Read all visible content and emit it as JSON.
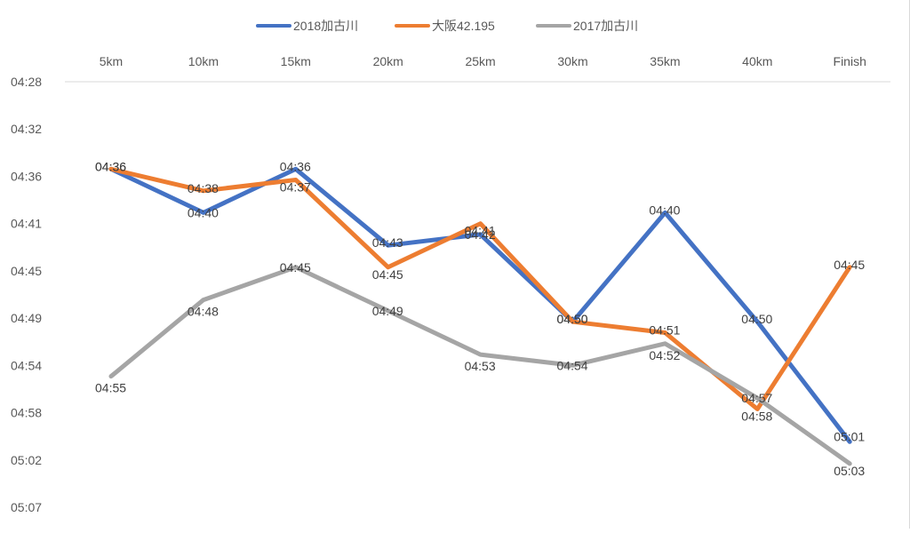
{
  "chart_data": {
    "type": "line",
    "categories": [
      "5km",
      "10km",
      "15km",
      "20km",
      "25km",
      "30km",
      "35km",
      "40km",
      "Finish"
    ],
    "y_tick_labels": [
      "04:28",
      "04:32",
      "04:36",
      "04:41",
      "04:45",
      "04:49",
      "04:54",
      "04:58",
      "05:02",
      "05:07"
    ],
    "y_axis_range_seconds": [
      268,
      307
    ],
    "y_axis_reversed": true,
    "x_axis_position": "top",
    "grid": false,
    "legend_position": "top",
    "series": [
      {
        "name": "2018加古川",
        "color": "#4472c4",
        "labels": [
          "04:36",
          "04:40",
          "04:36",
          "04:43",
          "04:42",
          "04:50",
          "04:40",
          "04:50",
          "05:01"
        ],
        "values_seconds": [
          276,
          280,
          276,
          283,
          282,
          290,
          280,
          290,
          301
        ]
      },
      {
        "name": "大阪42.195",
        "color": "#ed7d31",
        "labels": [
          "04:36",
          "04:38",
          "04:37",
          "04:45",
          "04:41",
          "04:50",
          "04:51",
          "04:58",
          "04:45"
        ],
        "values_seconds": [
          276,
          278,
          277,
          285,
          281,
          290,
          291,
          298,
          285
        ]
      },
      {
        "name": "2017加古川",
        "color": "#a5a5a5",
        "labels": [
          "04:55",
          "04:48",
          "04:45",
          "04:49",
          "04:53",
          "04:54",
          "04:52",
          "04:57",
          "05:03"
        ],
        "values_seconds": [
          295,
          288,
          285,
          289,
          293,
          294,
          292,
          297,
          303
        ]
      }
    ]
  }
}
